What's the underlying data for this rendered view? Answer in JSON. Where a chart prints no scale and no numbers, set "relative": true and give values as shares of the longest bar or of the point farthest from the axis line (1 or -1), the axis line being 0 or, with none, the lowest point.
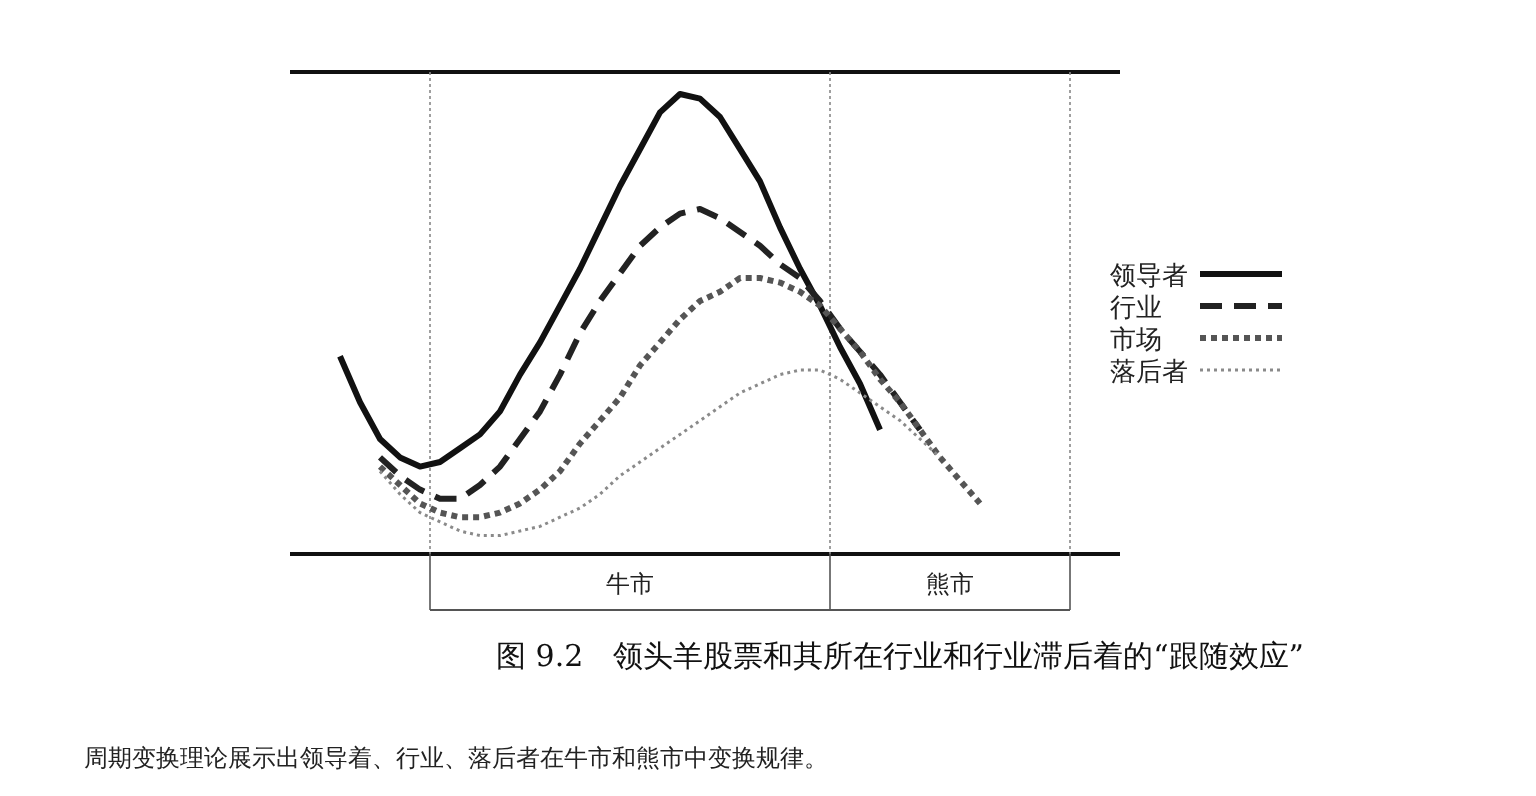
{
  "chart_data": {
    "type": "line",
    "relative": true,
    "title": "图 9.2　领头羊股票和其所在行业和行业滞后着的“跟随效应”",
    "annotations": [
      "牛市",
      "熊市",
      "周期变换理论展示出领导着、行业、落后者在牛市和熊市中变换规律。"
    ],
    "legend": "right",
    "marker": "none",
    "categories": [
      null,
      null,
      null,
      null,
      null,
      null,
      null,
      null,
      null,
      null,
      null,
      null,
      null,
      null,
      null,
      null,
      null,
      null,
      null,
      null,
      null,
      null,
      null,
      null,
      null,
      null,
      null,
      null,
      null,
      null,
      null,
      null,
      null
    ],
    "series": [
      {
        "name": "领导者",
        "color": "#111111",
        "line_style": "solid",
        "values": [
          0.43,
          0.33,
          0.25,
          0.21,
          0.19,
          0.2,
          0.23,
          0.26,
          0.31,
          0.39,
          0.46,
          0.54,
          0.62,
          0.71,
          0.8,
          0.88,
          0.96,
          1.0,
          0.99,
          0.95,
          0.88,
          0.81,
          0.71,
          0.62,
          0.54,
          0.45,
          0.37,
          0.27,
          null,
          null,
          null,
          null,
          null
        ]
      },
      {
        "name": "行业",
        "color": "#222222",
        "line_style": "dashed",
        "values": [
          null,
          null,
          0.21,
          0.17,
          0.14,
          0.12,
          0.12,
          0.15,
          0.19,
          0.25,
          0.31,
          0.39,
          0.48,
          0.55,
          0.61,
          0.67,
          0.71,
          0.74,
          0.75,
          0.73,
          0.7,
          0.67,
          0.63,
          0.6,
          0.55,
          0.49,
          0.44,
          0.39,
          0.33,
          0.27,
          null,
          null,
          null
        ]
      },
      {
        "name": "市场",
        "color": "#555555",
        "line_style": "dotted",
        "values": [
          null,
          null,
          0.19,
          0.15,
          0.11,
          0.09,
          0.08,
          0.08,
          0.09,
          0.11,
          0.14,
          0.18,
          0.24,
          0.29,
          0.34,
          0.41,
          0.46,
          0.51,
          0.55,
          0.57,
          0.6,
          0.6,
          0.59,
          0.57,
          0.54,
          0.49,
          0.44,
          0.38,
          0.33,
          0.27,
          0.21,
          0.16,
          0.11
        ]
      },
      {
        "name": "落后者",
        "color": "#8a8a8a",
        "line_style": "dotted",
        "values": [
          null,
          null,
          0.18,
          0.13,
          0.09,
          0.07,
          0.05,
          0.04,
          0.04,
          0.05,
          0.06,
          0.08,
          0.1,
          0.13,
          0.17,
          0.2,
          0.23,
          0.26,
          0.29,
          0.32,
          0.35,
          0.37,
          0.39,
          0.4,
          0.4,
          0.38,
          0.35,
          0.32,
          0.29,
          0.25,
          0.21,
          null,
          null
        ]
      }
    ]
  }
}
